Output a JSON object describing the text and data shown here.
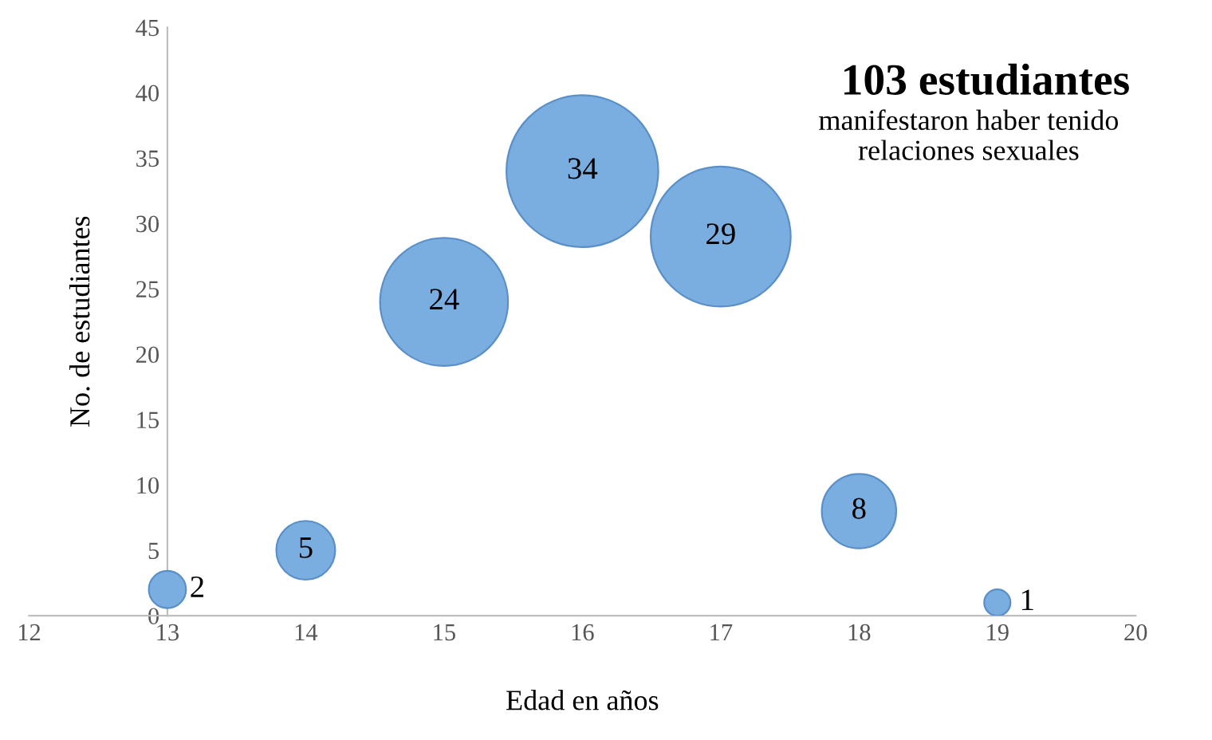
{
  "chart_data": {
    "type": "bubble",
    "title": "103 estudiantes",
    "subtitle": "manifestaron haber tenido\nrelaciones sexuales",
    "xlabel": "Edad en años",
    "ylabel": "No. de estudiantes",
    "x": [
      13,
      14,
      15,
      16,
      17,
      18,
      19
    ],
    "values": [
      2,
      5,
      24,
      34,
      29,
      8,
      1
    ],
    "sizes": [
      0.06,
      0.15,
      0.71,
      1,
      0.85,
      0.24,
      0.03
    ],
    "color": "#7aaee0",
    "data_labels": true,
    "xlim": [
      12,
      20
    ],
    "xticks": [
      12,
      13,
      14,
      15,
      16,
      17,
      18,
      19,
      20
    ],
    "ylim": [
      0,
      45
    ],
    "yticks": [
      0,
      5,
      10,
      15,
      20,
      25,
      30,
      35,
      40,
      45
    ],
    "grid": false,
    "legend": false
  }
}
